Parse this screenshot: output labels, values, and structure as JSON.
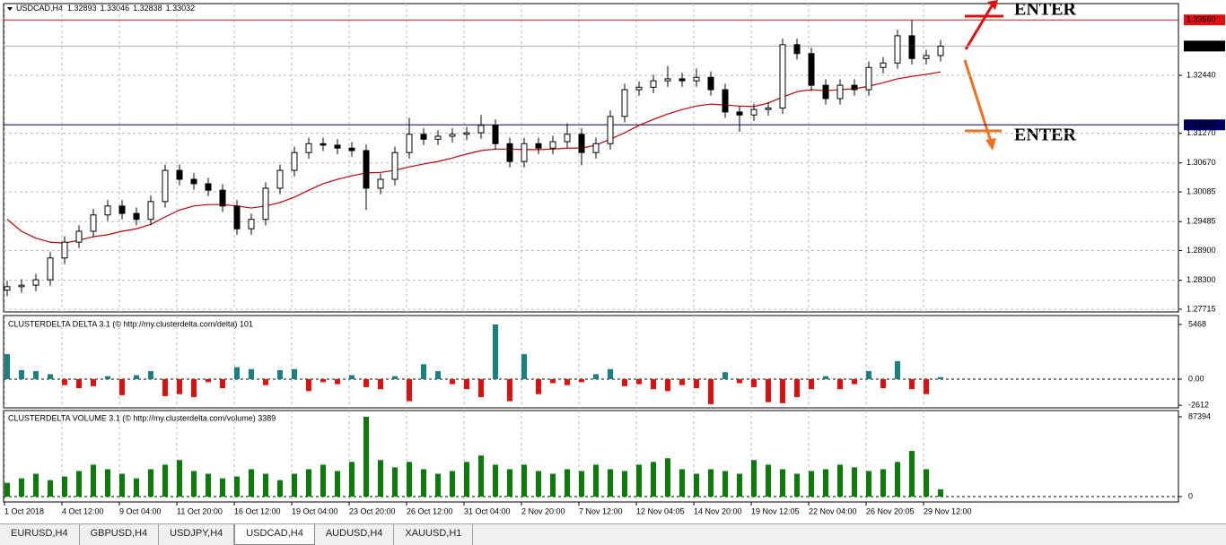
{
  "header": {
    "symbol": "USDCAD,H4",
    "ohlc": [
      1.32893,
      1.33046,
      1.32838,
      1.33032
    ]
  },
  "annotations": [
    {
      "text": "ENTER",
      "color": "#e01010"
    },
    {
      "text": "ENTER",
      "color": "#f07020"
    }
  ],
  "tabs": [
    "EURUSD,H4",
    "GBPUSD,H4",
    "USDJPY,H4",
    "USDCAD,H4",
    "AUDUSD,H4",
    "XAUUSD,H1"
  ],
  "active_tab": 3,
  "chart_data": [
    {
      "type": "candlestick",
      "categories": [
        "1 Oct 2018",
        null,
        null,
        null,
        "4 Oct 12:00",
        null,
        null,
        null,
        "9 Oct 04:00",
        null,
        null,
        null,
        "11 Oct 20:00",
        null,
        null,
        null,
        "16 Oct 12:00",
        null,
        null,
        null,
        "19 Oct 04:00",
        null,
        null,
        null,
        "23 Oct 20:00",
        null,
        null,
        null,
        "26 Oct 12:00",
        null,
        null,
        null,
        "31 Oct 04:00",
        null,
        null,
        null,
        "2 Nov 20:00",
        null,
        null,
        null,
        "7 Nov 12:00",
        null,
        null,
        null,
        "12 Nov 04:05",
        null,
        null,
        null,
        "14 Nov 20:00",
        null,
        null,
        null,
        "19 Nov 12:05",
        null,
        null,
        null,
        "22 Nov 04:00",
        null,
        null,
        null,
        "26 Nov 20:05",
        null,
        null,
        null,
        "29 Nov 12:00",
        null
      ],
      "open": [
        1.281,
        1.2817,
        1.282,
        1.2831,
        1.2875,
        1.2907,
        1.2929,
        1.2962,
        1.298,
        1.2965,
        1.2953,
        1.2989,
        1.3052,
        1.3034,
        1.3025,
        1.3012,
        1.298,
        1.2934,
        1.2953,
        1.3016,
        1.3052,
        1.3088,
        1.3106,
        1.3103,
        1.3097,
        1.3092,
        1.3016,
        1.3034,
        1.3088,
        1.3125,
        1.3115,
        1.3121,
        1.3125,
        1.3128,
        1.3143,
        1.3106,
        1.307,
        1.3106,
        1.3097,
        1.311,
        1.3125,
        1.3088,
        1.3106,
        1.3161,
        1.3215,
        1.322,
        1.3233,
        1.3237,
        1.3233,
        1.324,
        1.3215,
        1.317,
        1.3164,
        1.3175,
        1.3178,
        1.3306,
        1.3288,
        1.3224,
        1.3197,
        1.3224,
        1.3215,
        1.326,
        1.3269,
        1.3324,
        1.3278,
        1.3284
      ],
      "high": [
        1.2829,
        1.2832,
        1.2843,
        1.2887,
        1.2919,
        1.2941,
        1.2974,
        1.2992,
        1.2992,
        1.2977,
        1.3001,
        1.3064,
        1.3064,
        1.3046,
        1.3037,
        1.3024,
        1.2992,
        1.2965,
        1.3028,
        1.3064,
        1.31,
        1.3118,
        1.3118,
        1.3115,
        1.3109,
        1.3104,
        1.3046,
        1.31,
        1.3158,
        1.3137,
        1.3133,
        1.3137,
        1.314,
        1.3164,
        1.3155,
        1.3118,
        1.3118,
        1.3118,
        1.3122,
        1.3147,
        1.3137,
        1.3118,
        1.3173,
        1.3227,
        1.3232,
        1.3245,
        1.3263,
        1.3249,
        1.3258,
        1.3252,
        1.3227,
        1.3182,
        1.3187,
        1.319,
        1.3318,
        1.3318,
        1.33,
        1.3236,
        1.3236,
        1.3236,
        1.3272,
        1.3281,
        1.3336,
        1.3356,
        1.3296,
        1.3315
      ],
      "low": [
        1.2798,
        1.2805,
        1.2808,
        1.2819,
        1.2863,
        1.2895,
        1.2917,
        1.295,
        1.2953,
        1.2941,
        1.2941,
        1.2977,
        1.3022,
        1.3013,
        1.3,
        1.2968,
        1.2922,
        1.2922,
        1.2941,
        1.3004,
        1.304,
        1.3076,
        1.3091,
        1.3085,
        1.308,
        1.2972,
        1.3004,
        1.3022,
        1.3076,
        1.3103,
        1.3103,
        1.3109,
        1.3113,
        1.3116,
        1.3094,
        1.3058,
        1.3058,
        1.3085,
        1.3085,
        1.3098,
        1.3062,
        1.3076,
        1.3094,
        1.3149,
        1.3203,
        1.3208,
        1.3221,
        1.3221,
        1.3221,
        1.3203,
        1.3158,
        1.313,
        1.3152,
        1.3163,
        1.3166,
        1.3276,
        1.3212,
        1.3185,
        1.3185,
        1.3203,
        1.3203,
        1.3248,
        1.3257,
        1.3266,
        1.3266,
        1.3272
      ],
      "close": [
        1.2817,
        1.282,
        1.2831,
        1.2875,
        1.2907,
        1.2929,
        1.2962,
        1.298,
        1.2965,
        1.2953,
        1.2989,
        1.3052,
        1.3034,
        1.3025,
        1.3012,
        1.298,
        1.2934,
        1.2953,
        1.3016,
        1.3052,
        1.3088,
        1.3106,
        1.3103,
        1.3097,
        1.3092,
        1.3016,
        1.3034,
        1.3088,
        1.3125,
        1.3115,
        1.3121,
        1.3125,
        1.3128,
        1.3143,
        1.3106,
        1.307,
        1.3106,
        1.3097,
        1.311,
        1.3125,
        1.3088,
        1.3106,
        1.3161,
        1.3215,
        1.322,
        1.3233,
        1.3237,
        1.3233,
        1.324,
        1.3215,
        1.317,
        1.3164,
        1.3175,
        1.3178,
        1.3306,
        1.3288,
        1.3224,
        1.3197,
        1.3224,
        1.3215,
        1.326,
        1.3269,
        1.3324,
        1.3278,
        1.3284,
        1.3303
      ],
      "ma_values": [
        1.2953,
        1.2929,
        1.2915,
        1.2907,
        1.2905,
        1.2911,
        1.2918,
        1.2922,
        1.2929,
        1.2934,
        1.2943,
        1.2958,
        1.2972,
        1.298,
        1.2983,
        1.2983,
        1.298,
        1.2976,
        1.298,
        1.2987,
        1.2998,
        1.3012,
        1.3025,
        1.3034,
        1.3041,
        1.3047,
        1.3048,
        1.3052,
        1.3059,
        1.3065,
        1.307,
        1.3077,
        1.3085,
        1.3092,
        1.3095,
        1.3095,
        1.3094,
        1.3094,
        1.3095,
        1.3097,
        1.3097,
        1.3103,
        1.3115,
        1.3128,
        1.3143,
        1.3155,
        1.3166,
        1.3175,
        1.3182,
        1.3186,
        1.3184,
        1.3182,
        1.3181,
        1.3188,
        1.32,
        1.3211,
        1.3215,
        1.3213,
        1.3215,
        1.3217,
        1.3222,
        1.3229,
        1.3237,
        1.3242,
        1.3246,
        1.3251
      ],
      "ma_color": "#c00000",
      "ylim": [
        1.2766,
        1.3389
      ],
      "yticks": [
        {
          "value": 1.3244,
          "label": "1.32440"
        },
        {
          "value": 1.3127,
          "label": "1.31270"
        },
        {
          "value": 1.3067,
          "label": "1.30670"
        },
        {
          "value": 1.30085,
          "label": "1.30085"
        },
        {
          "value": 1.29485,
          "label": "1.29485"
        },
        {
          "value": 1.289,
          "label": "1.28900"
        },
        {
          "value": 1.283,
          "label": "1.28300"
        },
        {
          "value": 1.27715,
          "label": "1.27715"
        }
      ],
      "levels": [
        {
          "value": 1.3356,
          "label": "1.33560",
          "color": "#e01010"
        },
        {
          "value": 1.3144,
          "label": "1.31440",
          "color": "#000060"
        }
      ],
      "current": {
        "value": 1.33032,
        "label": "1.33032"
      },
      "grid": true
    },
    {
      "type": "histogram",
      "title": "CLUSTERDELTA DELTA 3.1 (© http://my.clusterdelta.com/delta) 101",
      "values": [
        2500,
        900,
        800,
        500,
        -600,
        -900,
        -700,
        300,
        -1600,
        400,
        800,
        -1700,
        -1500,
        -1800,
        -300,
        -900,
        1200,
        1000,
        -600,
        900,
        1000,
        -1200,
        -300,
        -500,
        400,
        -800,
        -1000,
        300,
        -2200,
        1500,
        800,
        -500,
        -1000,
        -1800,
        5468,
        -2200,
        2500,
        -1500,
        -400,
        -600,
        -300,
        500,
        1000,
        -700,
        -500,
        -1000,
        -1200,
        -600,
        -900,
        -2500,
        700,
        -400,
        -800,
        -2300,
        -2400,
        -1800,
        -1000,
        300,
        -1000,
        -500,
        800,
        -900,
        1800,
        -1000,
        -1500,
        200
      ],
      "colors": {
        "positive": "#1a7f7f",
        "negative": "#e01010"
      },
      "ylim": [
        -2868,
        6364
      ],
      "yticks": [
        5468,
        {
          "value": 0,
          "label": "0.00"
        },
        -2612
      ],
      "grid": true
    },
    {
      "type": "histogram",
      "title": "CLUSTERDELTA VOLUME 3.1 (© http://my.clusterdelta.com/volume) 3389",
      "values": [
        15000,
        20000,
        25000,
        18000,
        22000,
        28000,
        35000,
        30000,
        25000,
        20000,
        30000,
        35000,
        40000,
        28000,
        25000,
        20000,
        22000,
        30000,
        25000,
        18000,
        25000,
        30000,
        35000,
        28000,
        38000,
        87394,
        40000,
        32000,
        38000,
        30000,
        25000,
        28000,
        38000,
        45000,
        35000,
        30000,
        35000,
        28000,
        25000,
        30000,
        28000,
        35000,
        30000,
        28000,
        35000,
        38000,
        42000,
        30000,
        25000,
        30000,
        28000,
        25000,
        40000,
        35000,
        30000,
        25000,
        28000,
        30000,
        35000,
        32000,
        28000,
        30000,
        38000,
        50000,
        30000,
        8000
      ],
      "colors": {
        "positive": "#0a7a0a",
        "negative": "#0a7a0a"
      },
      "ylim": [
        -5890,
        94270
      ],
      "yticks": [
        87394,
        0
      ],
      "grid": true
    }
  ]
}
